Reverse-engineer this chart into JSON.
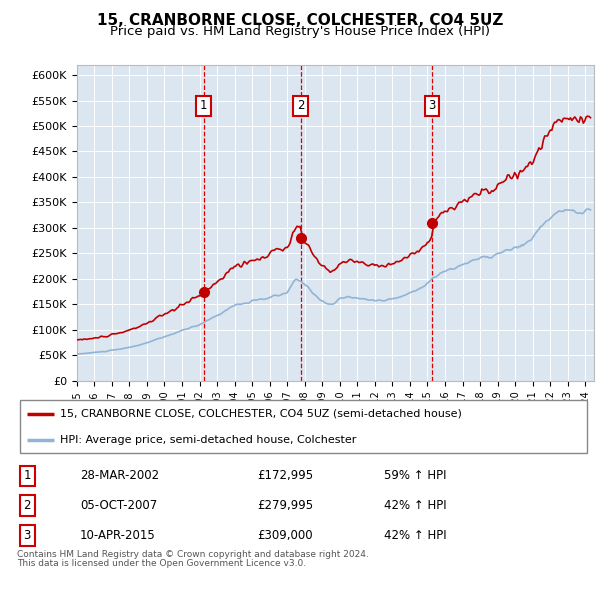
{
  "title": "15, CRANBORNE CLOSE, COLCHESTER, CO4 5UZ",
  "subtitle": "Price paid vs. HM Land Registry's House Price Index (HPI)",
  "ylim": [
    0,
    620000
  ],
  "yticks": [
    0,
    50000,
    100000,
    150000,
    200000,
    250000,
    300000,
    350000,
    400000,
    450000,
    500000,
    550000,
    600000
  ],
  "ytick_labels": [
    "£0",
    "£50K",
    "£100K",
    "£150K",
    "£200K",
    "£250K",
    "£300K",
    "£350K",
    "£400K",
    "£450K",
    "£500K",
    "£550K",
    "£600K"
  ],
  "plot_bg_color": "#dce6f1",
  "hpi_color": "#92b4d4",
  "price_color": "#c00000",
  "vline_color": "#dd0000",
  "box_edge_color": "#cc0000",
  "transactions": [
    {
      "date_num": 2002.23,
      "price": 172995,
      "label": "1"
    },
    {
      "date_num": 2007.76,
      "price": 279995,
      "label": "2"
    },
    {
      "date_num": 2015.27,
      "price": 309000,
      "label": "3"
    }
  ],
  "legend_address": "15, CRANBORNE CLOSE, COLCHESTER, CO4 5UZ (semi-detached house)",
  "legend_hpi": "HPI: Average price, semi-detached house, Colchester",
  "table_rows": [
    {
      "num": "1",
      "date": "28-MAR-2002",
      "price": "£172,995",
      "change": "59% ↑ HPI"
    },
    {
      "num": "2",
      "date": "05-OCT-2007",
      "price": "£279,995",
      "change": "42% ↑ HPI"
    },
    {
      "num": "3",
      "date": "10-APR-2015",
      "price": "£309,000",
      "change": "42% ↑ HPI"
    }
  ],
  "footnote1": "Contains HM Land Registry data © Crown copyright and database right 2024.",
  "footnote2": "This data is licensed under the Open Government Licence v3.0.",
  "title_fontsize": 11,
  "subtitle_fontsize": 9.5
}
